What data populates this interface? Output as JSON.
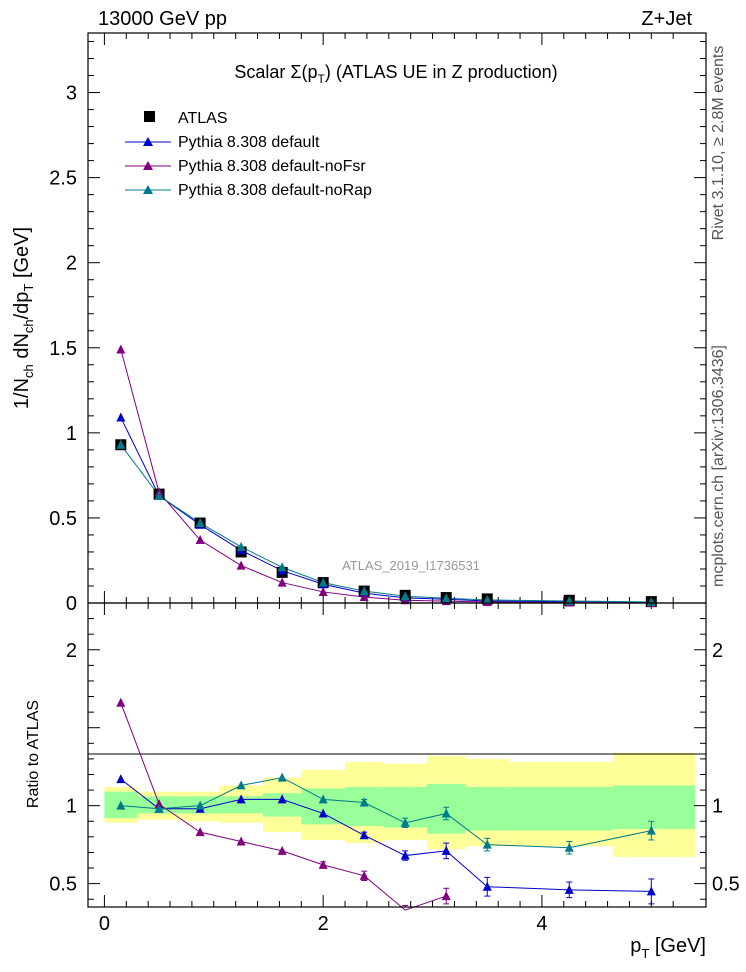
{
  "header": {
    "energy_label": "13000 GeV pp",
    "process_label": "Z+Jet",
    "title": "Scalar Σ(p",
    "title_sub": "T",
    "title_rest": ") (ATLAS UE in Z production)",
    "analysis_id": "ATLAS_2019_I1736531"
  },
  "side_labels": {
    "rivet": "Rivet 3.1.10, ≥ 2.8M events",
    "mcplots": "mcplots.cern.ch [arXiv:1306.3436]"
  },
  "axes": {
    "ylabel_top": {
      "p1": "1/N",
      "s1": "ch",
      "p2": " dN",
      "s2": "ch",
      "p3": "/dp",
      "s3": "T",
      "p4": " [GeV]"
    },
    "ylabel_bottom": "Ratio to ATLAS",
    "xlabel": {
      "p": "p",
      "s": "T",
      "rest": " [GeV]"
    },
    "xticks": [
      "0",
      "2",
      "4"
    ],
    "yticks_top": [
      "0",
      "0.5",
      "1",
      "1.5",
      "2",
      "2.5",
      "3"
    ],
    "yticks_bottom": [
      "0.5",
      "1",
      "2"
    ]
  },
  "legend": {
    "atlas": "ATLAS",
    "default": "Pythia 8.308 default",
    "nofsr": "Pythia 8.308 default-noFsr",
    "norap": "Pythia 8.308 default-noRap"
  },
  "colors": {
    "data": "#000000",
    "default": "#0000cc",
    "nofsr": "#800080",
    "norap": "#007b8c",
    "band_inner": "#99ff99",
    "band_outer": "#ffff99"
  },
  "chart_data": [
    {
      "type": "scatter",
      "title": "Scalar Σ(pT) (ATLAS UE in Z production)",
      "xlabel": "pT [GeV]",
      "ylabel": "1/Nch dNch/dpT [GeV]",
      "xlim": [
        -0.15,
        5.5
      ],
      "ylim": [
        0,
        3.35
      ],
      "legend_position": "top-left",
      "series": [
        {
          "name": "ATLAS",
          "marker": "square",
          "x": [
            0.15,
            0.5,
            0.875,
            1.25,
            1.625,
            2.0,
            2.375,
            2.75,
            3.125,
            3.5,
            4.25,
            5.0
          ],
          "y": [
            0.93,
            0.64,
            0.47,
            0.3,
            0.18,
            0.12,
            0.07,
            0.045,
            0.032,
            0.024,
            0.016,
            0.008
          ]
        },
        {
          "name": "Pythia 8.308 default",
          "marker": "triangle",
          "x": [
            0.15,
            0.5,
            0.875,
            1.25,
            1.625,
            2.0,
            2.375,
            2.75,
            3.125,
            3.5,
            4.25,
            5.0
          ],
          "y": [
            1.09,
            0.63,
            0.46,
            0.31,
            0.19,
            0.11,
            0.058,
            0.03,
            0.022,
            0.012,
            0.007,
            0.004
          ]
        },
        {
          "name": "Pythia 8.308 default-noFsr",
          "marker": "triangle",
          "x": [
            0.15,
            0.5,
            0.875,
            1.25,
            1.625,
            2.0,
            2.375,
            2.75,
            3.125,
            3.5,
            4.25,
            5.0
          ],
          "y": [
            1.49,
            0.65,
            0.37,
            0.22,
            0.12,
            0.065,
            0.035,
            0.016,
            0.011,
            0.006,
            0.003,
            0.001
          ]
        },
        {
          "name": "Pythia 8.308 default-noRap",
          "marker": "triangle",
          "x": [
            0.15,
            0.5,
            0.875,
            1.25,
            1.625,
            2.0,
            2.375,
            2.75,
            3.125,
            3.5,
            4.25,
            5.0
          ],
          "y": [
            0.93,
            0.63,
            0.47,
            0.33,
            0.21,
            0.12,
            0.07,
            0.04,
            0.028,
            0.018,
            0.012,
            0.006
          ]
        }
      ]
    },
    {
      "type": "line",
      "ylabel": "Ratio to ATLAS",
      "xlabel": "pT [GeV]",
      "xlim": [
        -0.15,
        5.5
      ],
      "ylim": [
        0.35,
        2.3
      ],
      "reference_line": 1.0,
      "bands": {
        "bin_edges": [
          0.0,
          0.3,
          0.7,
          1.05,
          1.45,
          1.8,
          2.2,
          2.55,
          2.95,
          3.3,
          3.7,
          4.65,
          5.4
        ],
        "inner": [
          [
            0.92,
            1.09
          ],
          [
            0.95,
            1.06
          ],
          [
            0.95,
            1.06
          ],
          [
            0.95,
            1.06
          ],
          [
            0.93,
            1.08
          ],
          [
            0.88,
            1.11
          ],
          [
            0.87,
            1.12
          ],
          [
            0.86,
            1.12
          ],
          [
            0.82,
            1.14
          ],
          [
            0.84,
            1.12
          ],
          [
            0.84,
            1.12
          ],
          [
            0.85,
            1.13
          ]
        ],
        "outer": [
          [
            0.89,
            1.12
          ],
          [
            0.91,
            1.09
          ],
          [
            0.9,
            1.09
          ],
          [
            0.89,
            1.13
          ],
          [
            0.83,
            1.18
          ],
          [
            0.78,
            1.23
          ],
          [
            0.76,
            1.28
          ],
          [
            0.78,
            1.27
          ],
          [
            0.72,
            1.32
          ],
          [
            0.74,
            1.3
          ],
          [
            0.74,
            1.28
          ],
          [
            0.67,
            1.34
          ]
        ]
      },
      "series": [
        {
          "name": "Pythia 8.308 default",
          "x": [
            0.15,
            0.5,
            0.875,
            1.25,
            1.625,
            2.0,
            2.375,
            2.75,
            3.125,
            3.5,
            4.25,
            5.0
          ],
          "y": [
            1.17,
            0.98,
            0.98,
            1.04,
            1.04,
            0.95,
            0.81,
            0.68,
            0.71,
            0.48,
            0.46,
            0.45
          ],
          "err": [
            0.01,
            0.01,
            0.01,
            0.01,
            0.01,
            0.01,
            0.02,
            0.03,
            0.05,
            0.06,
            0.05,
            0.08
          ]
        },
        {
          "name": "Pythia 8.308 default-noFsr",
          "x": [
            0.15,
            0.5,
            0.875,
            1.25,
            1.625,
            2.0,
            2.375,
            2.75,
            3.125
          ],
          "y": [
            1.66,
            1.01,
            0.83,
            0.77,
            0.71,
            0.62,
            0.55,
            0.33,
            0.42
          ],
          "err": [
            0.01,
            0.01,
            0.01,
            0.01,
            0.01,
            0.02,
            0.03,
            0.03,
            0.05
          ]
        },
        {
          "name": "Pythia 8.308 default-noRap",
          "x": [
            0.15,
            0.5,
            0.875,
            1.25,
            1.625,
            2.0,
            2.375,
            2.75,
            3.125,
            3.5,
            4.25,
            5.0
          ],
          "y": [
            1.0,
            0.98,
            1.0,
            1.13,
            1.18,
            1.04,
            1.02,
            0.89,
            0.95,
            0.75,
            0.73,
            0.84
          ],
          "err": [
            0.01,
            0.01,
            0.01,
            0.01,
            0.01,
            0.01,
            0.02,
            0.03,
            0.04,
            0.04,
            0.04,
            0.06
          ]
        }
      ]
    }
  ]
}
